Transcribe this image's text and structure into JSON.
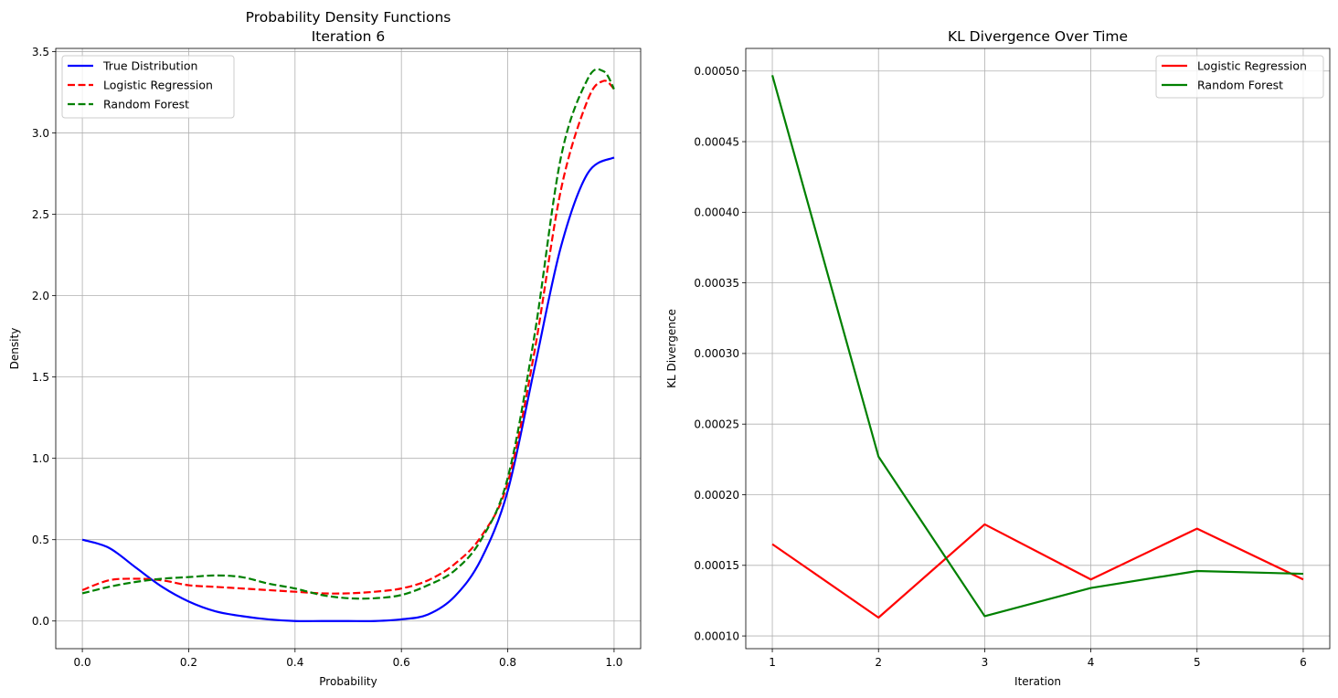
{
  "chart_data": [
    {
      "type": "line",
      "title": "Probability Density Functions",
      "subtitle": "Iteration 6",
      "xlabel": "Probability",
      "ylabel": "Density",
      "xlim": [
        -0.05,
        1.05
      ],
      "ylim": [
        -0.17,
        3.52
      ],
      "xticks": [
        0.0,
        0.2,
        0.4,
        0.6,
        0.8,
        1.0
      ],
      "xtick_labels": [
        "0.0",
        "0.2",
        "0.4",
        "0.6",
        "0.8",
        "1.0"
      ],
      "yticks": [
        0.0,
        0.5,
        1.0,
        1.5,
        2.0,
        2.5,
        3.0,
        3.5
      ],
      "ytick_labels": [
        "0.0",
        "0.5",
        "1.0",
        "1.5",
        "2.0",
        "2.5",
        "3.0",
        "3.5"
      ],
      "grid": true,
      "legend_position": "top-left",
      "series": [
        {
          "name": "True Distribution",
          "color": "#0000ff",
          "style": "solid",
          "x": [
            0.0,
            0.05,
            0.1,
            0.15,
            0.2,
            0.25,
            0.3,
            0.35,
            0.4,
            0.45,
            0.5,
            0.55,
            0.6,
            0.65,
            0.7,
            0.75,
            0.8,
            0.85,
            0.9,
            0.95,
            1.0
          ],
          "y": [
            0.5,
            0.45,
            0.33,
            0.21,
            0.12,
            0.06,
            0.03,
            0.01,
            0.0,
            0.0,
            0.0,
            0.0,
            0.01,
            0.04,
            0.15,
            0.38,
            0.8,
            1.55,
            2.3,
            2.75,
            2.85
          ]
        },
        {
          "name": "Logistic Regression",
          "color": "#ff0000",
          "style": "dashed",
          "x": [
            0.0,
            0.05,
            0.1,
            0.15,
            0.2,
            0.25,
            0.3,
            0.35,
            0.4,
            0.45,
            0.5,
            0.55,
            0.6,
            0.65,
            0.7,
            0.75,
            0.8,
            0.85,
            0.9,
            0.95,
            0.98,
            1.0
          ],
          "y": [
            0.19,
            0.25,
            0.26,
            0.25,
            0.22,
            0.21,
            0.2,
            0.19,
            0.18,
            0.17,
            0.17,
            0.18,
            0.2,
            0.25,
            0.35,
            0.52,
            0.85,
            1.65,
            2.65,
            3.2,
            3.32,
            3.27
          ]
        },
        {
          "name": "Random Forest",
          "color": "#008000",
          "style": "dashed",
          "x": [
            0.0,
            0.05,
            0.1,
            0.15,
            0.2,
            0.25,
            0.3,
            0.35,
            0.4,
            0.45,
            0.5,
            0.55,
            0.6,
            0.65,
            0.7,
            0.75,
            0.8,
            0.85,
            0.9,
            0.95,
            0.98,
            1.0
          ],
          "y": [
            0.17,
            0.21,
            0.24,
            0.26,
            0.27,
            0.28,
            0.27,
            0.23,
            0.2,
            0.16,
            0.14,
            0.14,
            0.16,
            0.22,
            0.31,
            0.5,
            0.88,
            1.75,
            2.85,
            3.33,
            3.38,
            3.27
          ]
        }
      ]
    },
    {
      "type": "line",
      "title": "KL Divergence Over Time",
      "xlabel": "Iteration",
      "ylabel": "KL Divergence",
      "xlim": [
        0.75,
        6.25
      ],
      "ylim": [
        9.1e-05,
        0.000516
      ],
      "xticks": [
        1,
        2,
        3,
        4,
        5,
        6
      ],
      "xtick_labels": [
        "1",
        "2",
        "3",
        "4",
        "5",
        "6"
      ],
      "yticks": [
        0.0001,
        0.00015,
        0.0002,
        0.00025,
        0.0003,
        0.00035,
        0.0004,
        0.00045,
        0.0005
      ],
      "ytick_labels": [
        "0.00010",
        "0.00015",
        "0.00020",
        "0.00025",
        "0.00030",
        "0.00035",
        "0.00040",
        "0.00045",
        "0.00050"
      ],
      "grid": true,
      "legend_position": "top-right",
      "series": [
        {
          "name": "Logistic Regression",
          "color": "#ff0000",
          "style": "solid",
          "x": [
            1,
            2,
            3,
            4,
            5,
            6
          ],
          "y": [
            0.000165,
            0.000113,
            0.000179,
            0.00014,
            0.000176,
            0.00014
          ]
        },
        {
          "name": "Random Forest",
          "color": "#008000",
          "style": "solid",
          "x": [
            1,
            2,
            3,
            4,
            5,
            6
          ],
          "y": [
            0.000497,
            0.000227,
            0.000114,
            0.000134,
            0.000146,
            0.000144
          ]
        }
      ]
    }
  ]
}
